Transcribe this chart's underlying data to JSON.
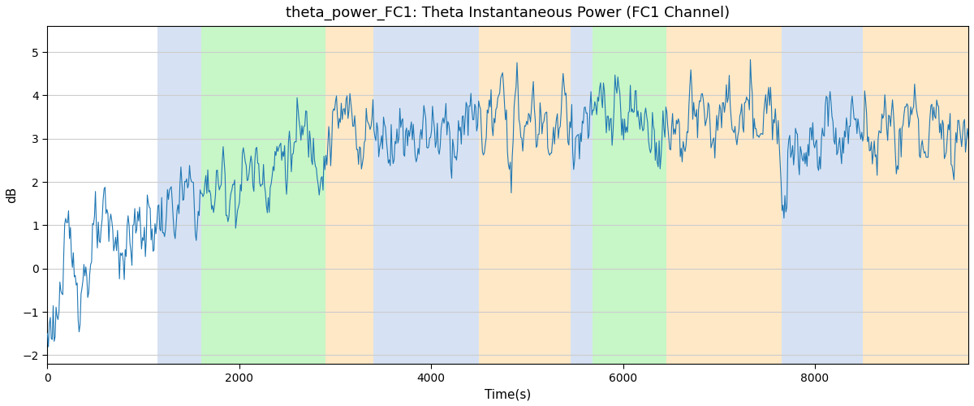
{
  "title": "theta_power_FC1: Theta Instantaneous Power (FC1 Channel)",
  "xlabel": "Time(s)",
  "ylabel": "dB",
  "ylim": [
    -2.2,
    5.6
  ],
  "xlim": [
    0,
    9600
  ],
  "line_color": "#1f77b4",
  "line_width": 0.8,
  "background_color": "#ffffff",
  "grid_color": "#cccccc",
  "title_fontsize": 13,
  "label_fontsize": 11,
  "regions": [
    {
      "start": 1150,
      "end": 1600,
      "color": "#aec6e8",
      "alpha": 0.5
    },
    {
      "start": 1600,
      "end": 2900,
      "color": "#90ee90",
      "alpha": 0.5
    },
    {
      "start": 2900,
      "end": 3400,
      "color": "#ffd9a0",
      "alpha": 0.6
    },
    {
      "start": 3400,
      "end": 4500,
      "color": "#aec6e8",
      "alpha": 0.5
    },
    {
      "start": 4500,
      "end": 5450,
      "color": "#ffd9a0",
      "alpha": 0.6
    },
    {
      "start": 5450,
      "end": 5680,
      "color": "#aec6e8",
      "alpha": 0.5
    },
    {
      "start": 5680,
      "end": 6450,
      "color": "#90ee90",
      "alpha": 0.5
    },
    {
      "start": 6450,
      "end": 7650,
      "color": "#ffd9a0",
      "alpha": 0.6
    },
    {
      "start": 7650,
      "end": 8500,
      "color": "#aec6e8",
      "alpha": 0.5
    },
    {
      "start": 8500,
      "end": 9600,
      "color": "#ffd9a0",
      "alpha": 0.6
    }
  ],
  "seed": 123,
  "n_points": 960,
  "t_max": 9600
}
